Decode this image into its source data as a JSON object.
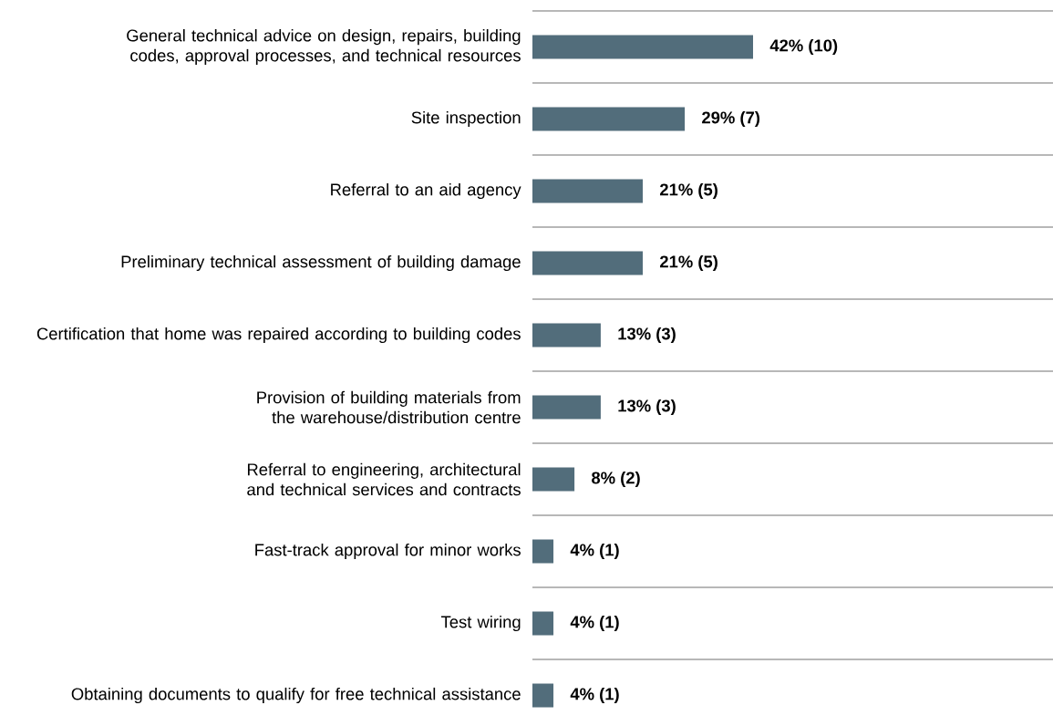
{
  "chart_data": {
    "type": "bar",
    "orientation": "horizontal",
    "grid": "y",
    "categories": [
      "General technical advice on design, repairs, building codes, approval processes, and technical resources",
      "Site inspection",
      "Referral to an aid agency",
      "Preliminary technical assessment of building damage",
      "Certification that home was repaired according to building codes",
      "Provision of building materials from the warehouse/distribution centre",
      "Referral to engineering, architectural and technical services and contracts",
      "Fast-track approval for minor works",
      "Test wiring",
      "Obtaining documents to qualify for free technical assistance"
    ],
    "values": [
      42,
      29,
      21,
      21,
      13,
      13,
      8,
      4,
      4,
      4
    ],
    "value_labels": [
      "42% (10)",
      "29% (7)",
      "21% (5)",
      "21% (5)",
      "13% (3)",
      "13% (3)",
      "8% (2)",
      "4% (1)",
      "4% (1)",
      "4% (1)"
    ],
    "color": "#526d7b"
  }
}
